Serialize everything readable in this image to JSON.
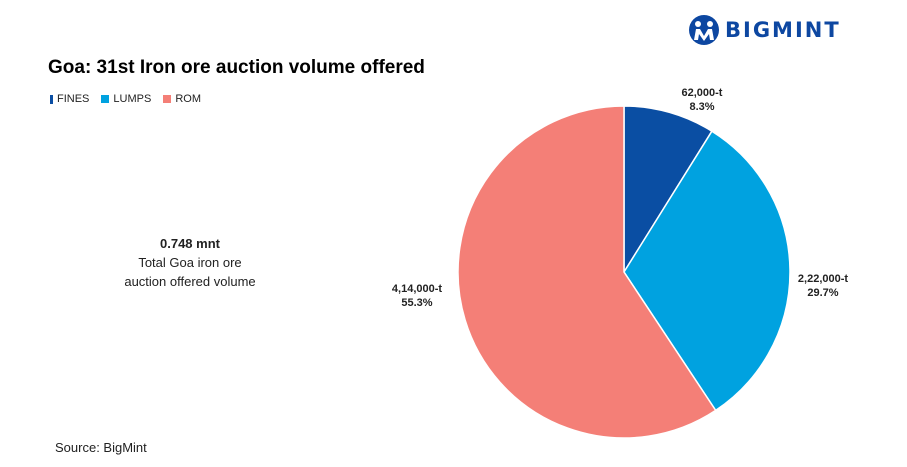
{
  "brand": {
    "name": "BIGMINT",
    "color": "#0d47a1"
  },
  "chart_data": {
    "type": "pie",
    "title": "Goa: 31st Iron ore auction volume offered",
    "slices": [
      {
        "name": "FINES",
        "value": 62000,
        "value_label": "62,000-t",
        "percent_label": "8.3%",
        "color": "#0a4ea3"
      },
      {
        "name": "LUMPS",
        "value": 222000,
        "value_label": "2,22,000-t",
        "percent_label": "29.7%",
        "color": "#00a2e0"
      },
      {
        "name": "ROM",
        "value": 414000,
        "value_label": "4,14,000-t",
        "percent_label": "55.3%",
        "color": "#f47f77"
      }
    ],
    "legend_position": "top-left",
    "annotation": {
      "value": "0.748 mnt",
      "line1": "Total Goa iron ore",
      "line2": "auction offered volume"
    },
    "source": "Source: BigMint"
  }
}
